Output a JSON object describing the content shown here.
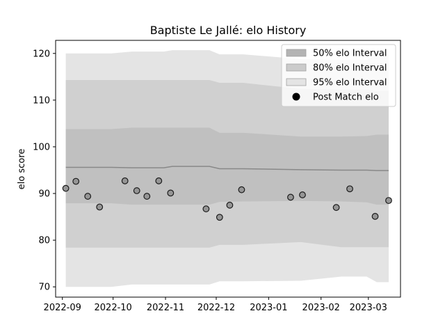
{
  "chart_data": {
    "type": "area",
    "title": "Baptiste Le Jallé: elo History",
    "xlabel": "",
    "ylabel": "elo score",
    "ylim": [
      67.8,
      122.8
    ],
    "xlim": [
      "2022-08-28",
      "2023-03-20"
    ],
    "x_ticks": [
      "2022-09",
      "2022-10",
      "2022-11",
      "2022-12",
      "2023-01",
      "2023-02",
      "2023-03"
    ],
    "y_ticks": [
      70,
      80,
      90,
      100,
      110,
      120
    ],
    "grid": false,
    "legend_position": "top-right",
    "legend": [
      {
        "label": "50% elo Interval",
        "kind": "band",
        "color": "#b4b4b4"
      },
      {
        "label": "80% elo Interval",
        "kind": "band",
        "color": "#cbcbcb"
      },
      {
        "label": "95% elo Interval",
        "kind": "band",
        "color": "#e4e4e4"
      },
      {
        "label": "Post Match elo",
        "kind": "marker",
        "color": "#000000"
      }
    ],
    "colors": {
      "band50": "#c0c0c0",
      "band80": "#d0d0d0",
      "band95": "#e4e4e4",
      "mean_line": "#888888",
      "points": "#959595"
    },
    "bands": {
      "dates": [
        "2022-09-03",
        "2022-09-30",
        "2022-10-12",
        "2022-10-31",
        "2022-11-05",
        "2022-11-27",
        "2022-12-03",
        "2022-12-17",
        "2023-01-20",
        "2023-02-13",
        "2023-02-28",
        "2023-03-06",
        "2023-03-13"
      ],
      "mean": [
        95.6,
        95.6,
        95.5,
        95.5,
        95.8,
        95.8,
        95.3,
        95.3,
        95.1,
        95.0,
        95.0,
        94.9,
        94.9
      ],
      "p50_low": [
        87.9,
        87.9,
        87.6,
        87.6,
        87.6,
        87.6,
        88.2,
        88.3,
        88.4,
        88.3,
        88.1,
        87.6,
        87.6
      ],
      "p50_high": [
        103.8,
        103.8,
        104.1,
        104.1,
        104.1,
        104.1,
        103.0,
        103.0,
        102.2,
        102.2,
        102.3,
        102.6,
        102.6
      ],
      "p80_low": [
        78.4,
        78.4,
        78.4,
        78.4,
        78.4,
        78.4,
        79.0,
        79.0,
        79.6,
        78.5,
        78.5,
        78.5,
        78.5
      ],
      "p80_high": [
        114.3,
        114.3,
        114.3,
        114.3,
        114.3,
        114.3,
        113.7,
        113.7,
        112.4,
        112.3,
        112.3,
        112.0,
        112.0
      ],
      "p95_low": [
        70.0,
        70.0,
        70.5,
        70.5,
        70.5,
        70.5,
        71.2,
        71.2,
        71.3,
        72.2,
        72.2,
        71.0,
        71.0
      ],
      "p95_high": [
        120.0,
        120.0,
        120.4,
        120.4,
        120.7,
        120.7,
        119.8,
        119.8,
        118.8,
        118.6,
        118.6,
        119.7,
        119.7
      ]
    },
    "series": [
      {
        "name": "Post Match elo",
        "points": [
          {
            "x": "2022-09-03",
            "y": 91.1
          },
          {
            "x": "2022-09-09",
            "y": 92.6
          },
          {
            "x": "2022-09-16",
            "y": 89.4
          },
          {
            "x": "2022-09-23",
            "y": 87.1
          },
          {
            "x": "2022-10-08",
            "y": 92.7
          },
          {
            "x": "2022-10-15",
            "y": 90.6
          },
          {
            "x": "2022-10-21",
            "y": 89.4
          },
          {
            "x": "2022-10-28",
            "y": 92.7
          },
          {
            "x": "2022-11-04",
            "y": 90.1
          },
          {
            "x": "2022-11-25",
            "y": 86.7
          },
          {
            "x": "2022-12-03",
            "y": 84.9
          },
          {
            "x": "2022-12-09",
            "y": 87.5
          },
          {
            "x": "2022-12-16",
            "y": 90.8
          },
          {
            "x": "2023-01-14",
            "y": 89.2
          },
          {
            "x": "2023-01-21",
            "y": 89.7
          },
          {
            "x": "2023-02-10",
            "y": 87.0
          },
          {
            "x": "2023-02-18",
            "y": 91.0
          },
          {
            "x": "2023-03-05",
            "y": 85.1
          },
          {
            "x": "2023-03-13",
            "y": 88.5
          }
        ]
      }
    ]
  }
}
